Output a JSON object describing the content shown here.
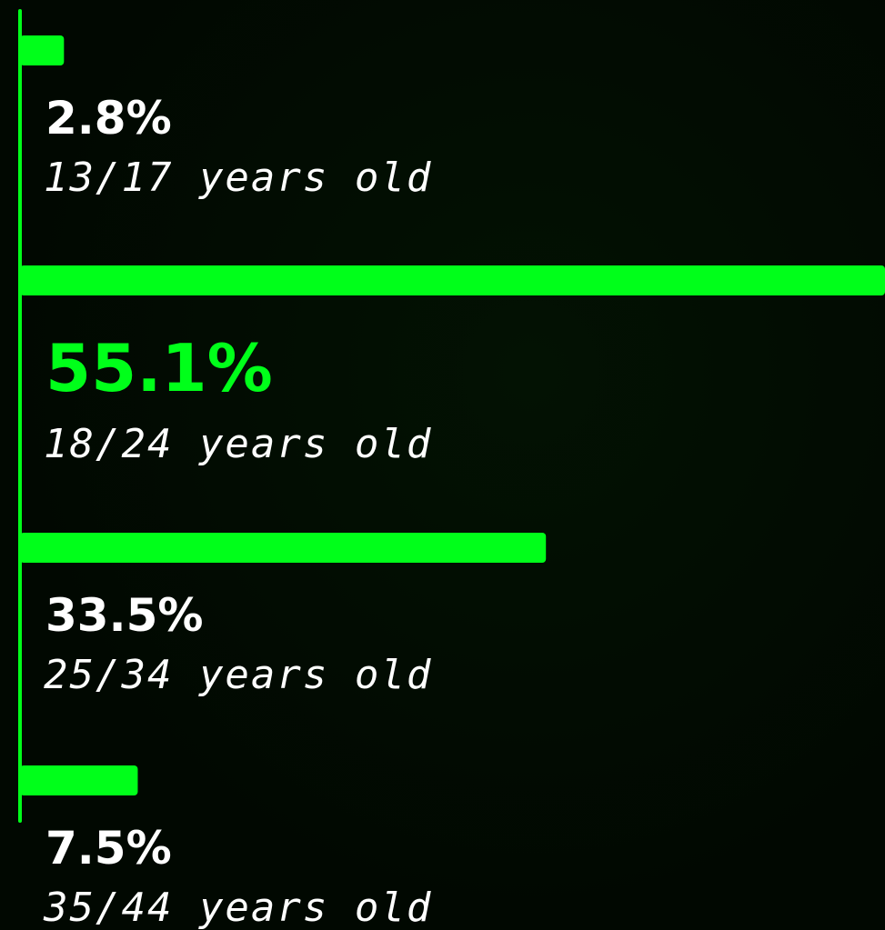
{
  "chart_data": {
    "type": "bar",
    "orientation": "horizontal",
    "categories": [
      "13/17 years old",
      "18/24 years old",
      "25/34 years old",
      "35/44 years old"
    ],
    "values": [
      2.8,
      55.1,
      33.5,
      7.5
    ],
    "value_labels": [
      "2.8%",
      "55.1%",
      "33.5%",
      "7.5%"
    ],
    "color": "#00ff1a"
  }
}
